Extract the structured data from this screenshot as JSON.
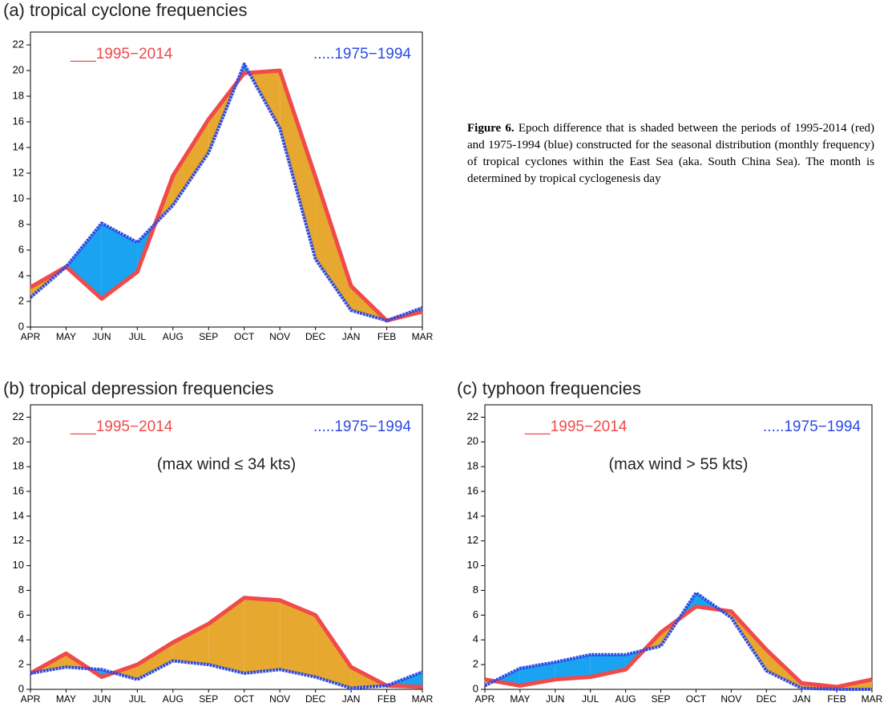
{
  "chart_data": [
    {
      "type": "line",
      "title": "(a) tropical cyclone frequencies",
      "categories": [
        "APR",
        "MAY",
        "JUN",
        "JUL",
        "AUG",
        "SEP",
        "OCT",
        "NOV",
        "DEC",
        "JAN",
        "FEB",
        "MAR"
      ],
      "series": [
        {
          "name": "___1995−2014",
          "color": "#f04a4a",
          "values": [
            3.1,
            4.7,
            2.2,
            4.3,
            11.8,
            16.2,
            19.8,
            20.0,
            11.7,
            3.2,
            0.5,
            1.2
          ]
        },
        {
          "name": ".....1975−1994",
          "color": "#2d4be6",
          "values": [
            2.3,
            4.7,
            8.1,
            6.6,
            9.5,
            13.6,
            20.5,
            15.5,
            5.3,
            1.3,
            0.5,
            1.5
          ]
        }
      ],
      "fill_colors": [
        "#e6a82e",
        "#1aa3f0"
      ],
      "ylim": [
        0,
        23
      ],
      "yticks": [
        0,
        2,
        4,
        6,
        8,
        10,
        12,
        14,
        16,
        18,
        20,
        22
      ]
    },
    {
      "type": "line",
      "title": "(b) tropical depression frequencies",
      "annotation": "(max wind ≤ 34 kts)",
      "categories": [
        "APR",
        "MAY",
        "JUN",
        "JUL",
        "AUG",
        "SEP",
        "OCT",
        "NOV",
        "DEC",
        "JAN",
        "FEB",
        "MAR"
      ],
      "series": [
        {
          "name": "___1995−2014",
          "color": "#f04a4a",
          "values": [
            1.3,
            2.9,
            1.0,
            2.0,
            3.8,
            5.3,
            7.4,
            7.2,
            6.0,
            1.8,
            0.3,
            0.2
          ]
        },
        {
          "name": ".....1975−1994",
          "color": "#2d4be6",
          "values": [
            1.3,
            1.8,
            1.6,
            0.8,
            2.3,
            2.0,
            1.3,
            1.6,
            1.0,
            0.1,
            0.3,
            1.4
          ]
        }
      ],
      "fill_colors": [
        "#e6a82e",
        "#1aa3f0"
      ],
      "ylim": [
        0,
        23
      ],
      "yticks": [
        0,
        2,
        4,
        6,
        8,
        10,
        12,
        14,
        16,
        18,
        20,
        22
      ]
    },
    {
      "type": "line",
      "title": "(c) typhoon frequencies",
      "annotation": "(max wind > 55 kts)",
      "categories": [
        "APR",
        "MAY",
        "JUN",
        "JUL",
        "AUG",
        "SEP",
        "OCT",
        "NOV",
        "DEC",
        "JAN",
        "FEB",
        "MAR"
      ],
      "series": [
        {
          "name": "___1995−2014",
          "color": "#f04a4a",
          "values": [
            0.8,
            0.3,
            0.8,
            1.0,
            1.6,
            4.6,
            6.7,
            6.3,
            3.2,
            0.5,
            0.2,
            0.8
          ]
        },
        {
          "name": ".....1975−1994",
          "color": "#2d4be6",
          "values": [
            0.3,
            1.7,
            2.2,
            2.8,
            2.8,
            3.5,
            7.8,
            5.8,
            1.5,
            0.1,
            0.0,
            0.0
          ]
        }
      ],
      "fill_colors": [
        "#e6a82e",
        "#1aa3f0"
      ],
      "ylim": [
        0,
        23
      ],
      "yticks": [
        0,
        2,
        4,
        6,
        8,
        10,
        12,
        14,
        16,
        18,
        20,
        22
      ]
    }
  ],
  "caption_label": "Figure 6.",
  "caption": "Epoch difference that is shaded between the periods of 1995-2014 (red) and 1975-1994 (blue) constructed for the seasonal distribution (monthly frequency) of tropical cyclones within the East Sea (aka. South China Sea).  The month is determined by tropical cyclogenesis day"
}
